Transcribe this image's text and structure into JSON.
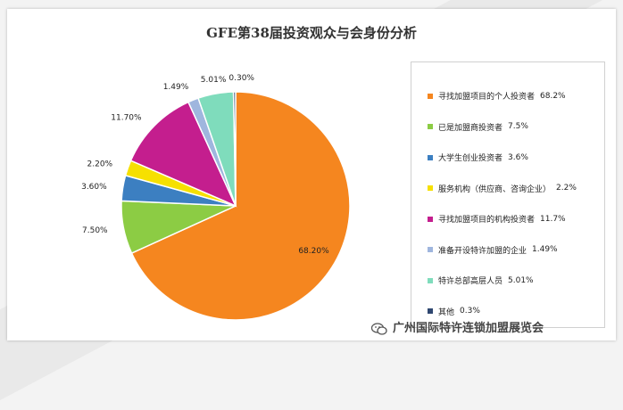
{
  "chart_data": {
    "type": "pie",
    "title": "GFE第38届投资观众与会身份分析",
    "categories": [
      "寻找加盟项目的个人投资者",
      "已是加盟商投资者",
      "大学生创业投资者",
      "服务机构（供应商、咨询企业）",
      "寻找加盟项目的机构投资者",
      "准备开设特许加盟的企业",
      "特许总部高层人员",
      "其他"
    ],
    "values": [
      68.2,
      7.5,
      3.6,
      2.2,
      11.7,
      1.49,
      5.01,
      0.3
    ],
    "slice_labels": [
      "68.20%",
      "7.50%",
      "3.60%",
      "2.20%",
      "11.70%",
      "1.49%",
      "5.01%",
      "0.30%"
    ],
    "legend_values": [
      "68.2%",
      "7.5%",
      "3.6%",
      "2.2%",
      "11.7%",
      "1.49%",
      "5.01%",
      "0.3%"
    ],
    "colors": [
      "#f5861f",
      "#8ccc44",
      "#3c7fc1",
      "#f6e000",
      "#c41e8e",
      "#9fb6de",
      "#7fdcbc",
      "#2f4770"
    ],
    "legend_position": "right"
  },
  "watermark": {
    "text": "广州国际特许连锁加盟展览会",
    "icon": "wechat-icon"
  }
}
